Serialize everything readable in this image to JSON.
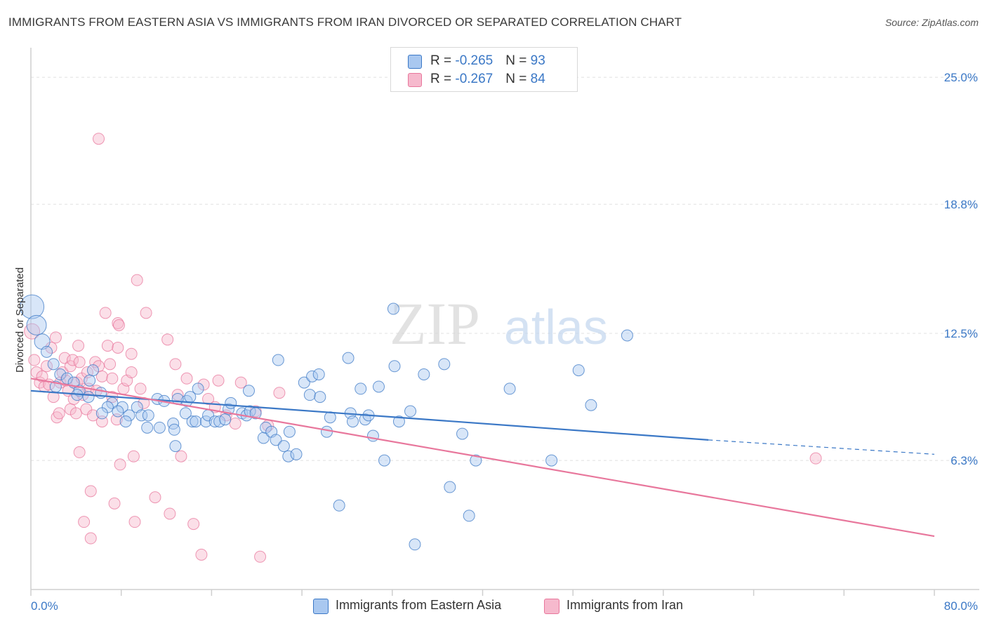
{
  "title": "IMMIGRANTS FROM EASTERN ASIA VS IMMIGRANTS FROM IRAN DIVORCED OR SEPARATED CORRELATION CHART",
  "source": "Source: ZipAtlas.com",
  "watermark": {
    "zip": "ZIP",
    "atlas": "atlas"
  },
  "legend": {
    "rows": [
      {
        "r_label": "R = ",
        "r_value": "-0.265",
        "n_label": "N = ",
        "n_value": "93"
      },
      {
        "r_label": "R = ",
        "r_value": "-0.267",
        "n_label": "N = ",
        "n_value": "84"
      }
    ]
  },
  "colors": {
    "blue": "#3b78c6",
    "blue_fill": "#a9c8f0",
    "pink": "#e8779c",
    "pink_fill": "#f6b9cd",
    "grid": "#e0e0e0"
  },
  "chart_data": {
    "type": "scatter",
    "title": "IMMIGRANTS FROM EASTERN ASIA VS IMMIGRANTS FROM IRAN DIVORCED OR SEPARATED CORRELATION CHART",
    "xlabel": "",
    "ylabel": "Divorced or Separated",
    "xlim": [
      0,
      80
    ],
    "ylim": [
      0,
      26.1
    ],
    "x_tick_labels": [
      "0.0%",
      "80.0%"
    ],
    "y_ticks": [
      6.3,
      12.5,
      18.8,
      25.0
    ],
    "y_tick_labels": [
      "6.3%",
      "12.5%",
      "18.8%",
      "25.0%"
    ],
    "grid": true,
    "legend_position": "top-center",
    "series": [
      {
        "name": "Immigrants from Eastern Asia",
        "color": "#3b78c6",
        "trend": {
          "x0": 0,
          "y0": 9.7,
          "x1": 60,
          "y1": 7.3,
          "dash_to_x": 80,
          "dash_to_y": 6.6
        },
        "points": [
          [
            0.1,
            13.8,
            3
          ],
          [
            0.5,
            12.9,
            2.5
          ],
          [
            1.0,
            12.1,
            1.5
          ],
          [
            1.4,
            11.6,
            1
          ],
          [
            2.0,
            11.0,
            1
          ],
          [
            2.6,
            10.5,
            1
          ],
          [
            3.2,
            10.3,
            1
          ],
          [
            2.2,
            9.9,
            1
          ],
          [
            3.8,
            10.1,
            1
          ],
          [
            5.5,
            10.7,
            1
          ],
          [
            5.2,
            10.2,
            1
          ],
          [
            4.3,
            9.7,
            1
          ],
          [
            4.1,
            9.5,
            1
          ],
          [
            6.2,
            9.6,
            1
          ],
          [
            5.1,
            9.4,
            1
          ],
          [
            7.2,
            9.1,
            1
          ],
          [
            6.8,
            8.9,
            1
          ],
          [
            8.1,
            8.9,
            1
          ],
          [
            9.4,
            8.9,
            1
          ],
          [
            7.7,
            8.7,
            1
          ],
          [
            6.3,
            8.6,
            1
          ],
          [
            8.7,
            8.5,
            1
          ],
          [
            9.8,
            8.5,
            1
          ],
          [
            11.2,
            9.3,
            1
          ],
          [
            11.8,
            9.2,
            1
          ],
          [
            10.4,
            8.5,
            1
          ],
          [
            8.4,
            8.2,
            1
          ],
          [
            10.3,
            7.9,
            1
          ],
          [
            11.4,
            7.9,
            1
          ],
          [
            12.6,
            8.1,
            1
          ],
          [
            12.7,
            7.8,
            1
          ],
          [
            13.7,
            8.6,
            1
          ],
          [
            13.8,
            9.2,
            1
          ],
          [
            14.1,
            9.4,
            1
          ],
          [
            14.8,
            9.8,
            1
          ],
          [
            14.3,
            8.2,
            1
          ],
          [
            14.6,
            8.2,
            1
          ],
          [
            15.5,
            8.2,
            1
          ],
          [
            15.7,
            8.5,
            1
          ],
          [
            16.3,
            8.2,
            1
          ],
          [
            16.7,
            8.2,
            1
          ],
          [
            17.5,
            8.8,
            1
          ],
          [
            17.7,
            9.1,
            1
          ],
          [
            18.7,
            8.6,
            1
          ],
          [
            19.1,
            8.5,
            1
          ],
          [
            19.4,
            8.7,
            1
          ],
          [
            19.9,
            8.6,
            1
          ],
          [
            19.3,
            9.7,
            1
          ],
          [
            20.6,
            7.4,
            1
          ],
          [
            20.8,
            7.9,
            1
          ],
          [
            21.3,
            7.7,
            1
          ],
          [
            21.7,
            7.3,
            1
          ],
          [
            22.4,
            7.0,
            1
          ],
          [
            22.8,
            6.5,
            1
          ],
          [
            23.5,
            6.6,
            1
          ],
          [
            22.9,
            7.7,
            1
          ],
          [
            21.9,
            11.2,
            1
          ],
          [
            24.2,
            10.1,
            1
          ],
          [
            24.7,
            9.5,
            1
          ],
          [
            24.9,
            10.4,
            1
          ],
          [
            25.5,
            10.5,
            1
          ],
          [
            25.6,
            9.4,
            1
          ],
          [
            26.2,
            7.7,
            1
          ],
          [
            26.5,
            8.4,
            1
          ],
          [
            27.3,
            4.1,
            1
          ],
          [
            28.1,
            11.3,
            1
          ],
          [
            28.3,
            8.6,
            1
          ],
          [
            28.5,
            8.2,
            1
          ],
          [
            29.2,
            9.8,
            1
          ],
          [
            29.6,
            8.3,
            1
          ],
          [
            29.9,
            8.5,
            1
          ],
          [
            30.3,
            7.5,
            1
          ],
          [
            30.8,
            9.9,
            1
          ],
          [
            31.3,
            6.3,
            1
          ],
          [
            32.1,
            13.7,
            1
          ],
          [
            32.2,
            10.9,
            1
          ],
          [
            32.6,
            8.2,
            1
          ],
          [
            33.6,
            8.7,
            1
          ],
          [
            34.0,
            2.2,
            1
          ],
          [
            34.8,
            10.5,
            1
          ],
          [
            36.6,
            11.0,
            1
          ],
          [
            37.1,
            5.0,
            1
          ],
          [
            38.2,
            7.6,
            1
          ],
          [
            38.8,
            3.6,
            1
          ],
          [
            39.4,
            6.3,
            1
          ],
          [
            42.4,
            9.8,
            1
          ],
          [
            46.1,
            6.3,
            1
          ],
          [
            48.5,
            10.7,
            1
          ],
          [
            49.6,
            9.0,
            1
          ],
          [
            52.8,
            12.4,
            1
          ],
          [
            17.2,
            8.3,
            1
          ],
          [
            13.0,
            9.3,
            1
          ],
          [
            12.8,
            7.0,
            1
          ]
        ]
      },
      {
        "name": "Immigrants from Iran",
        "color": "#e8779c",
        "trend": {
          "x0": 0,
          "y0": 10.3,
          "x1": 80,
          "y1": 2.6
        },
        "points": [
          [
            0.1,
            12.6,
            1.5
          ],
          [
            0.3,
            11.2,
            1
          ],
          [
            0.5,
            10.6,
            1
          ],
          [
            0.8,
            10.1,
            1
          ],
          [
            1.0,
            10.4,
            1
          ],
          [
            1.2,
            9.9,
            1
          ],
          [
            1.4,
            10.9,
            1
          ],
          [
            1.6,
            10.0,
            1
          ],
          [
            1.8,
            11.8,
            1
          ],
          [
            2.0,
            9.4,
            1
          ],
          [
            2.2,
            12.3,
            1
          ],
          [
            2.3,
            8.4,
            1
          ],
          [
            2.5,
            8.6,
            1
          ],
          [
            2.6,
            10.1,
            1
          ],
          [
            2.8,
            10.6,
            1
          ],
          [
            3.0,
            11.3,
            1
          ],
          [
            3.1,
            10.2,
            1
          ],
          [
            3.3,
            9.7,
            1
          ],
          [
            3.5,
            10.9,
            1
          ],
          [
            3.5,
            8.8,
            1
          ],
          [
            3.7,
            11.2,
            1
          ],
          [
            3.8,
            9.3,
            1
          ],
          [
            4.0,
            8.6,
            1
          ],
          [
            4.1,
            10.1,
            1
          ],
          [
            4.2,
            11.9,
            1
          ],
          [
            4.3,
            11.1,
            1
          ],
          [
            4.3,
            6.7,
            1
          ],
          [
            4.5,
            10.3,
            1
          ],
          [
            4.6,
            9.5,
            1
          ],
          [
            4.7,
            3.3,
            1
          ],
          [
            4.9,
            8.8,
            1
          ],
          [
            5.0,
            10.6,
            1
          ],
          [
            5.1,
            9.8,
            1
          ],
          [
            5.3,
            2.5,
            1
          ],
          [
            5.3,
            4.8,
            1
          ],
          [
            5.5,
            8.5,
            1
          ],
          [
            5.7,
            11.1,
            1
          ],
          [
            5.8,
            9.7,
            1
          ],
          [
            6.0,
            10.9,
            1
          ],
          [
            6.0,
            22.0,
            1
          ],
          [
            6.3,
            10.4,
            1
          ],
          [
            6.3,
            8.2,
            1
          ],
          [
            6.6,
            13.5,
            1
          ],
          [
            6.8,
            11.9,
            1
          ],
          [
            7.0,
            11.0,
            1
          ],
          [
            7.2,
            10.3,
            1
          ],
          [
            7.2,
            9.4,
            1
          ],
          [
            7.4,
            4.2,
            1
          ],
          [
            7.6,
            8.3,
            1
          ],
          [
            7.7,
            11.8,
            1
          ],
          [
            7.7,
            13.0,
            1
          ],
          [
            7.8,
            12.9,
            1
          ],
          [
            7.9,
            6.1,
            1
          ],
          [
            8.2,
            9.8,
            1
          ],
          [
            8.5,
            10.2,
            1
          ],
          [
            8.9,
            11.5,
            1
          ],
          [
            9.1,
            6.5,
            1
          ],
          [
            9.2,
            3.3,
            1
          ],
          [
            9.4,
            15.1,
            1
          ],
          [
            9.7,
            9.8,
            1
          ],
          [
            10.0,
            9.1,
            1
          ],
          [
            10.2,
            13.5,
            1
          ],
          [
            11.0,
            4.5,
            1
          ],
          [
            12.1,
            12.2,
            1
          ],
          [
            12.3,
            3.7,
            1
          ],
          [
            12.8,
            11.0,
            1
          ],
          [
            13.0,
            9.5,
            1
          ],
          [
            13.3,
            6.5,
            1
          ],
          [
            13.8,
            10.3,
            1
          ],
          [
            14.4,
            3.2,
            1
          ],
          [
            15.1,
            1.7,
            1
          ],
          [
            15.3,
            10.0,
            1
          ],
          [
            15.7,
            9.3,
            1
          ],
          [
            16.3,
            8.9,
            1
          ],
          [
            16.6,
            10.2,
            1
          ],
          [
            17.3,
            8.5,
            1
          ],
          [
            18.1,
            8.1,
            1
          ],
          [
            18.6,
            10.1,
            1
          ],
          [
            19.9,
            8.7,
            1
          ],
          [
            20.3,
            1.6,
            1
          ],
          [
            21.0,
            8.0,
            1
          ],
          [
            22.0,
            9.6,
            1
          ],
          [
            69.5,
            6.4,
            1
          ],
          [
            8.9,
            10.6,
            1
          ]
        ]
      }
    ]
  },
  "bottom_legend": [
    "Immigrants from Eastern Asia",
    "Immigrants from Iran"
  ]
}
